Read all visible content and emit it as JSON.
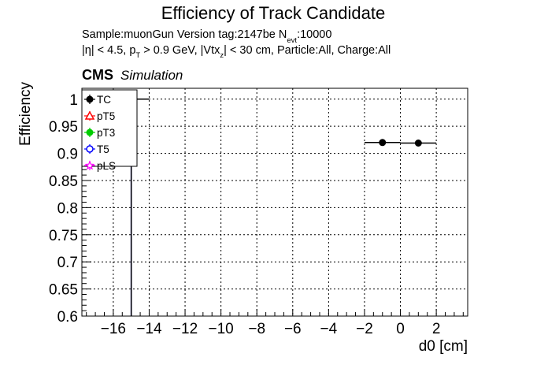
{
  "chart_data": {
    "type": "scatter",
    "title": "Efficiency of Track Candidate",
    "subtitle_line1": {
      "prefix": "Sample:muonGun   Version tag:2147be  N",
      "sub": "evt",
      "suffix": ":10000"
    },
    "subtitle_line2": {
      "seg1": "|η| < 4.5, p",
      "sub1": "T",
      "seg2": " > 0.9 GeV, |Vtx",
      "sub2": "z",
      "seg3": "| < 30 cm, Particle:All, Charge:All"
    },
    "cms_label": "CMS",
    "cms_sublabel": "Simulation",
    "xlabel": "d0 [cm]",
    "ylabel": "Efficiency",
    "xlim": [
      -17.75,
      3.75
    ],
    "ylim": [
      0.6,
      1.02
    ],
    "xticks": [
      -16,
      -14,
      -12,
      -10,
      -8,
      -6,
      -4,
      -2,
      0,
      2
    ],
    "xtick_labels": [
      "−16",
      "−14",
      "−12",
      "−10",
      "−8",
      "−6",
      "−4",
      "−2",
      "0",
      "2"
    ],
    "yticks": [
      0.6,
      0.65,
      0.7,
      0.75,
      0.8,
      0.85,
      0.9,
      0.95,
      1.0
    ],
    "ytick_labels": [
      "0.6",
      "0.65",
      "0.7",
      "0.75",
      "0.8",
      "0.85",
      "0.9",
      "0.95",
      "1"
    ],
    "grid": true,
    "legend_position": "top-left",
    "series": [
      {
        "name": "TC",
        "color": "#000000",
        "marker": "filled-circle",
        "points": [
          {
            "x": -15.0,
            "y": 1.0,
            "xerr": 1.0,
            "yerr_low": 0.9,
            "yerr_high": 0.0
          },
          {
            "x": -1.0,
            "y": 0.92,
            "xerr": 1.0,
            "yerr_low": 0.0,
            "yerr_high": 0.0
          },
          {
            "x": 1.0,
            "y": 0.919,
            "xerr": 1.0,
            "yerr_low": 0.0,
            "yerr_high": 0.0
          }
        ]
      },
      {
        "name": "pT5",
        "color": "#ff0000",
        "marker": "open-triangle",
        "points": []
      },
      {
        "name": "pT3",
        "color": "#00cc00",
        "marker": "filled-circle",
        "points": []
      },
      {
        "name": "T5",
        "color": "#0000ff",
        "marker": "open-circle",
        "points": [
          {
            "x": -15.0,
            "y": 1.0,
            "xerr": 1.0,
            "yerr_low": 0.9,
            "yerr_high": 0.0
          }
        ]
      },
      {
        "name": "pLS",
        "color": "#ff00ff",
        "marker": "open-star",
        "points": []
      }
    ]
  }
}
